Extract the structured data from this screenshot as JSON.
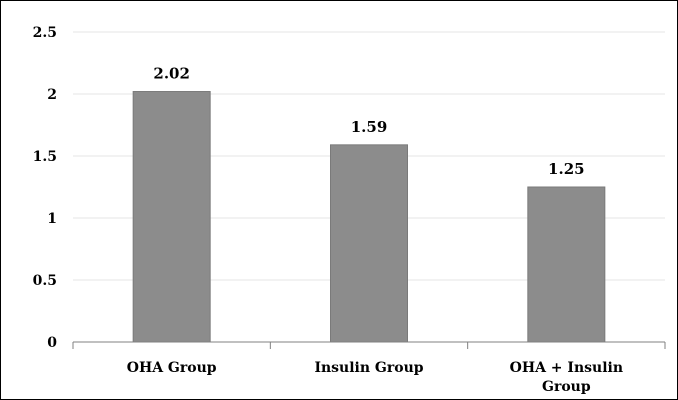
{
  "chart_data": {
    "type": "bar",
    "title": "",
    "xlabel": "",
    "ylabel": "",
    "categories": [
      "OHA Group",
      "Insulin Group",
      "OHA + Insulin Group"
    ],
    "category_lines": [
      [
        "OHA Group"
      ],
      [
        "Insulin Group"
      ],
      [
        "OHA + Insulin",
        "Group"
      ]
    ],
    "values": [
      2.02,
      1.59,
      1.25
    ],
    "data_labels": [
      "2.02",
      "1.59",
      "1.25"
    ],
    "ylim": [
      0,
      2.5
    ],
    "yticks": [
      0,
      0.5,
      1,
      1.5,
      2,
      2.5
    ],
    "ytick_labels": [
      "0",
      "0.5",
      "1",
      "1.5",
      "2",
      "2.5"
    ],
    "grid": true,
    "legend": "none",
    "bar_color": "#8c8c8c",
    "bar_edge_color": "#7a7a7a",
    "grid_color": "#e6e6e6",
    "axis_color": "#808080"
  }
}
